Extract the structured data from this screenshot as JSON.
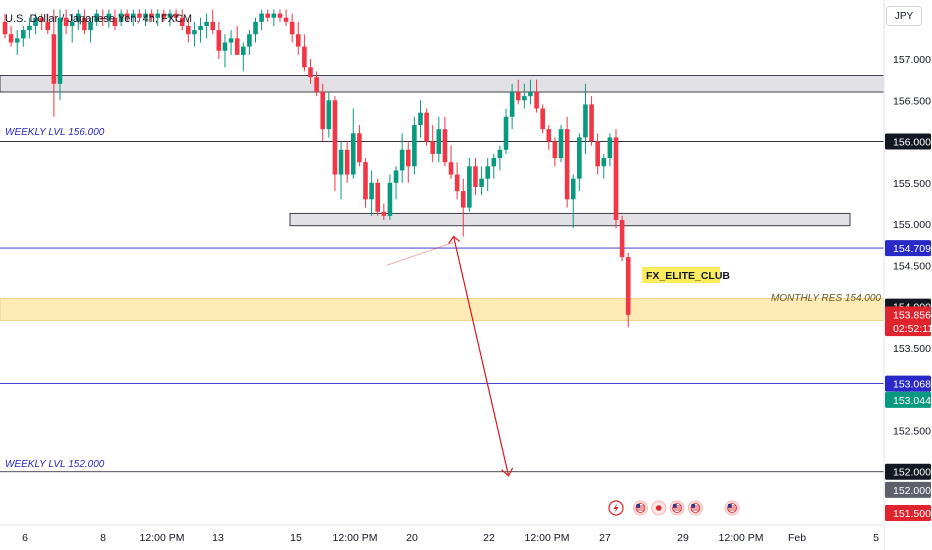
{
  "header": {
    "title": "U.S. Dollar / Japanese Yen, 4h, FXCM",
    "currency": "JPY"
  },
  "colors": {
    "up": "#089981",
    "down": "#f23645",
    "blue_line": "#2929c8",
    "zone_fill": "#d5d6dc",
    "monthly_fill": "#fde6a8",
    "arrow": "#e0161b"
  },
  "annotations": {
    "weekly_156": "WEEKLY LVL 156.000",
    "weekly_152": "WEEKLY LVL 152.000",
    "monthly": "MONTHLY RES 154.000",
    "club_label": "FX_ELITE_CLUB"
  },
  "chart_data": {
    "type": "candlestick",
    "symbol": "USDJPY",
    "timeframe": "4h",
    "source": "FXCM",
    "y_axis": {
      "ticks": [
        "157.000",
        "156.500",
        "156.000",
        "155.500",
        "155.000",
        "154.500",
        "154.000",
        "153.500",
        "153.000",
        "152.500",
        "152.000",
        "151.500"
      ],
      "range": [
        151.35,
        157.55
      ]
    },
    "x_axis": {
      "ticks": [
        "6",
        "8",
        "12:00 PM",
        "13",
        "15",
        "12:00 PM",
        "20",
        "22",
        "12:00 PM",
        "27",
        "29",
        "12:00 PM",
        "Feb",
        "5"
      ]
    },
    "price_badges": [
      {
        "text": "156.000",
        "price": 156.0,
        "style": "dark"
      },
      {
        "text": "154.709",
        "price": 154.709,
        "style": "blue"
      },
      {
        "text": "154.000",
        "price": 154.0,
        "style": "dark"
      },
      {
        "text": "153.856",
        "price": 153.905,
        "style": "red"
      },
      {
        "text": "02:52:11",
        "price": 153.74,
        "style": "red"
      },
      {
        "text": "153.068",
        "price": 153.068,
        "style": "blue"
      },
      {
        "text": "153.044",
        "price": 152.87,
        "style": "green"
      },
      {
        "text": "152.000",
        "price": 152.0,
        "style": "dark"
      },
      {
        "text": "152.000",
        "price": 151.78,
        "style": "gray"
      },
      {
        "text": "151.500",
        "price": 151.5,
        "style": "red"
      }
    ],
    "levels": [
      {
        "price": 156.0,
        "kind": "weekly"
      },
      {
        "price": 154.709,
        "kind": "blue"
      },
      {
        "price": 153.068,
        "kind": "blue"
      },
      {
        "price": 152.0,
        "kind": "weekly"
      }
    ],
    "zones": [
      {
        "from": 156.6,
        "to": 156.8,
        "kind": "gray"
      },
      {
        "from": 154.98,
        "to": 155.13,
        "kind": "gray"
      },
      {
        "from": 153.83,
        "to": 154.1,
        "kind": "monthly"
      }
    ],
    "candles": [
      [
        157.45,
        157.55,
        157.25,
        157.3
      ],
      [
        157.3,
        157.4,
        157.15,
        157.2
      ],
      [
        157.2,
        157.35,
        157.05,
        157.25
      ],
      [
        157.25,
        157.4,
        157.15,
        157.35
      ],
      [
        157.35,
        157.5,
        157.25,
        157.4
      ],
      [
        157.4,
        157.55,
        157.3,
        157.5
      ],
      [
        157.5,
        157.55,
        157.35,
        157.45
      ],
      [
        157.45,
        157.55,
        157.3,
        157.35
      ],
      [
        157.3,
        157.6,
        156.3,
        156.7
      ],
      [
        156.7,
        157.6,
        156.5,
        157.5
      ],
      [
        157.5,
        157.6,
        157.3,
        157.4
      ],
      [
        157.4,
        157.55,
        157.2,
        157.45
      ],
      [
        157.45,
        157.6,
        157.35,
        157.55
      ],
      [
        157.5,
        157.6,
        157.3,
        157.35
      ],
      [
        157.35,
        157.5,
        157.2,
        157.45
      ],
      [
        157.45,
        157.6,
        157.4,
        157.55
      ],
      [
        157.5,
        157.6,
        157.4,
        157.48
      ],
      [
        157.48,
        157.6,
        157.38,
        157.55
      ],
      [
        157.5,
        157.6,
        157.35,
        157.4
      ],
      [
        157.45,
        157.6,
        157.4,
        157.55
      ],
      [
        157.55,
        157.6,
        157.45,
        157.5
      ],
      [
        157.5,
        157.6,
        157.4,
        157.55
      ],
      [
        157.55,
        157.6,
        157.45,
        157.5
      ],
      [
        157.5,
        157.6,
        157.4,
        157.55
      ],
      [
        157.55,
        157.6,
        157.45,
        157.5
      ],
      [
        157.5,
        157.6,
        157.4,
        157.55
      ],
      [
        157.55,
        157.6,
        157.45,
        157.5
      ],
      [
        157.5,
        157.6,
        157.4,
        157.55
      ],
      [
        157.55,
        157.6,
        157.45,
        157.5
      ],
      [
        157.5,
        157.6,
        157.35,
        157.4
      ],
      [
        157.4,
        157.5,
        157.2,
        157.3
      ],
      [
        157.3,
        157.45,
        157.15,
        157.35
      ],
      [
        157.35,
        157.5,
        157.2,
        157.4
      ],
      [
        157.4,
        157.55,
        157.25,
        157.45
      ],
      [
        157.45,
        157.6,
        157.3,
        157.35
      ],
      [
        157.35,
        157.45,
        157.0,
        157.1
      ],
      [
        157.1,
        157.3,
        156.9,
        157.2
      ],
      [
        157.2,
        157.35,
        157.05,
        157.25
      ],
      [
        157.25,
        157.4,
        157.1,
        157.05
      ],
      [
        157.05,
        157.2,
        156.85,
        157.15
      ],
      [
        157.15,
        157.35,
        157.05,
        157.3
      ],
      [
        157.3,
        157.5,
        157.2,
        157.45
      ],
      [
        157.45,
        157.6,
        157.35,
        157.55
      ],
      [
        157.55,
        157.6,
        157.45,
        157.5
      ],
      [
        157.5,
        157.6,
        157.4,
        157.55
      ],
      [
        157.55,
        157.6,
        157.45,
        157.5
      ],
      [
        157.5,
        157.6,
        157.4,
        157.45
      ],
      [
        157.45,
        157.55,
        157.2,
        157.3
      ],
      [
        157.3,
        157.45,
        157.05,
        157.15
      ],
      [
        157.15,
        157.3,
        156.85,
        156.9
      ],
      [
        156.9,
        157.0,
        156.7,
        156.78
      ],
      [
        156.78,
        156.85,
        156.55,
        156.6
      ],
      [
        156.6,
        156.7,
        156.0,
        156.15
      ],
      [
        156.15,
        156.6,
        156.05,
        156.5
      ],
      [
        156.5,
        156.55,
        155.4,
        155.6
      ],
      [
        155.6,
        156.0,
        155.3,
        155.9
      ],
      [
        155.9,
        156.0,
        155.5,
        155.6
      ],
      [
        155.6,
        156.4,
        155.55,
        156.1
      ],
      [
        156.1,
        156.2,
        155.7,
        155.75
      ],
      [
        155.75,
        155.8,
        155.2,
        155.3
      ],
      [
        155.3,
        155.65,
        155.1,
        155.5
      ],
      [
        155.5,
        155.55,
        155.1,
        155.15
      ],
      [
        155.15,
        155.25,
        155.05,
        155.1
      ],
      [
        155.1,
        155.6,
        155.05,
        155.5
      ],
      [
        155.5,
        155.7,
        155.3,
        155.65
      ],
      [
        155.65,
        156.1,
        155.5,
        155.9
      ],
      [
        155.9,
        156.0,
        155.5,
        155.7
      ],
      [
        155.7,
        156.3,
        155.6,
        156.2
      ],
      [
        156.2,
        156.5,
        156.05,
        156.35
      ],
      [
        156.35,
        156.4,
        155.95,
        156.0
      ],
      [
        156.0,
        156.2,
        155.75,
        155.85
      ],
      [
        155.85,
        156.3,
        155.75,
        156.15
      ],
      [
        156.15,
        156.3,
        155.7,
        155.75
      ],
      [
        155.75,
        155.95,
        155.55,
        155.6
      ],
      [
        155.6,
        155.75,
        155.3,
        155.4
      ],
      [
        155.4,
        155.55,
        154.85,
        155.2
      ],
      [
        155.2,
        155.8,
        155.15,
        155.7
      ],
      [
        155.7,
        155.8,
        155.35,
        155.45
      ],
      [
        155.45,
        155.7,
        155.35,
        155.55
      ],
      [
        155.55,
        155.8,
        155.4,
        155.7
      ],
      [
        155.7,
        155.85,
        155.55,
        155.8
      ],
      [
        155.8,
        155.95,
        155.65,
        155.9
      ],
      [
        155.9,
        156.4,
        155.85,
        156.3
      ],
      [
        156.3,
        156.7,
        156.15,
        156.6
      ],
      [
        156.6,
        156.75,
        156.45,
        156.5
      ],
      [
        156.5,
        156.7,
        156.4,
        156.55
      ],
      [
        156.55,
        156.75,
        156.45,
        156.6
      ],
      [
        156.6,
        156.75,
        156.35,
        156.4
      ],
      [
        156.4,
        156.45,
        156.1,
        156.15
      ],
      [
        156.15,
        156.2,
        155.9,
        156.0
      ],
      [
        156.0,
        156.05,
        155.7,
        155.8
      ],
      [
        155.8,
        156.2,
        155.75,
        156.15
      ],
      [
        156.15,
        156.3,
        155.2,
        155.3
      ],
      [
        155.3,
        155.6,
        154.95,
        155.55
      ],
      [
        155.55,
        156.1,
        155.4,
        156.05
      ],
      [
        156.05,
        156.7,
        155.85,
        156.45
      ],
      [
        156.45,
        156.55,
        155.95,
        156.0
      ],
      [
        156.0,
        156.1,
        155.6,
        155.7
      ],
      [
        155.7,
        155.85,
        155.55,
        155.8
      ],
      [
        155.8,
        156.1,
        155.7,
        156.05
      ],
      [
        156.05,
        156.15,
        154.95,
        155.05
      ],
      [
        155.05,
        155.1,
        154.55,
        154.6
      ],
      [
        154.6,
        154.65,
        153.75,
        153.9
      ]
    ],
    "arrow": {
      "points": [
        [
          73.5,
          154.85
        ],
        [
          62.5,
          154.5
        ],
        [
          82.5,
          151.95
        ]
      ]
    },
    "event_icons": [
      {
        "name": "lightning-icon",
        "candle": 100
      },
      {
        "name": "us-flag-icon",
        "candle": 104
      },
      {
        "name": "record-icon",
        "candle": 107
      },
      {
        "name": "us-flag-icon",
        "candle": 110
      },
      {
        "name": "us-flag-icon",
        "candle": 113
      },
      {
        "name": "us-flag-icon",
        "candle": 119
      }
    ]
  }
}
